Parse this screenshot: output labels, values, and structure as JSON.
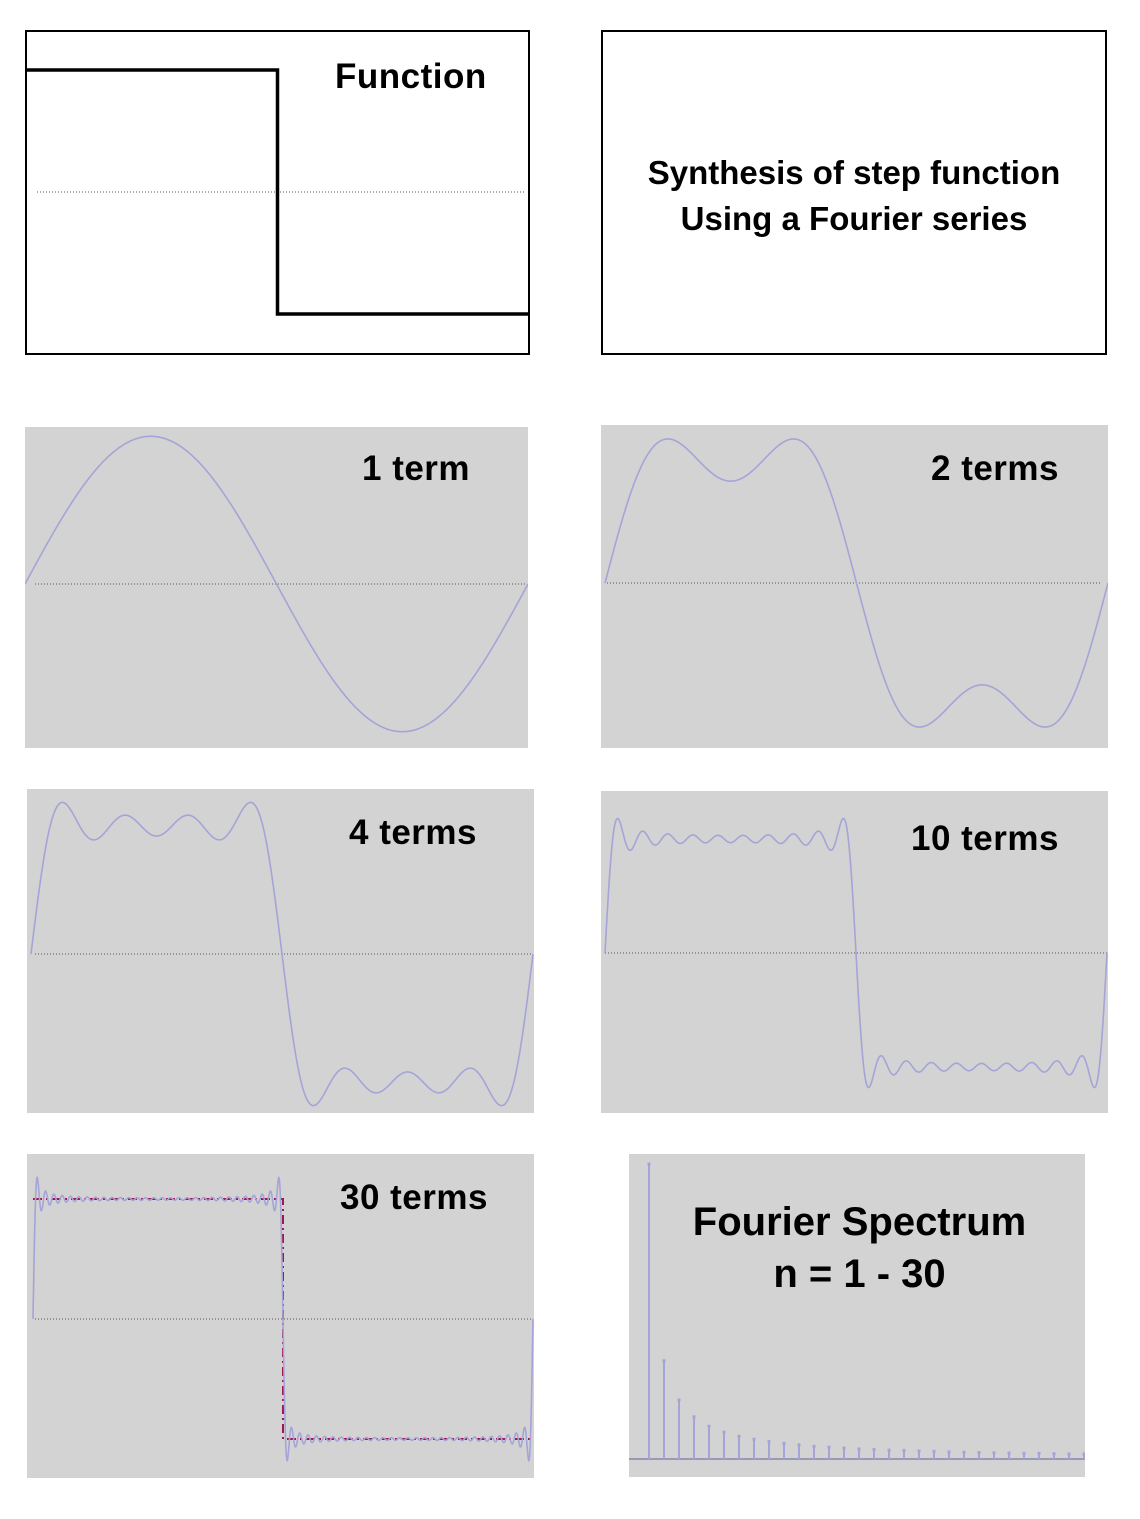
{
  "panels": {
    "function": {
      "label": "Function"
    },
    "caption": {
      "line1": "Synthesis of step function",
      "line2": "Using a Fourier series"
    },
    "t1": {
      "label": "1 term",
      "terms": 1
    },
    "t2": {
      "label": "2 terms",
      "terms": 2
    },
    "t4": {
      "label": "4 terms",
      "terms": 4
    },
    "t10": {
      "label": "10 terms",
      "terms": 10
    },
    "t30": {
      "label": "30 terms",
      "terms": 30
    },
    "spectrum": {
      "line1": "Fourier Spectrum",
      "line2": "n = 1 - 30"
    }
  },
  "chart_data": [
    {
      "type": "line",
      "title": "Function",
      "description_series": "step function",
      "series": [
        {
          "x": [
            0,
            0.5,
            0.5,
            1
          ],
          "values": [
            1,
            1,
            -1,
            -1
          ]
        }
      ],
      "ylim": [
        -1.3,
        1.3
      ]
    },
    {
      "type": "line",
      "title": "1 term",
      "terms": 1,
      "ylim": [
        -1.3,
        1.3
      ]
    },
    {
      "type": "line",
      "title": "2 terms",
      "terms": 2,
      "ylim": [
        -1.3,
        1.3
      ]
    },
    {
      "type": "line",
      "title": "4 terms",
      "terms": 4,
      "ylim": [
        -1.3,
        1.3
      ]
    },
    {
      "type": "line",
      "title": "10 terms",
      "terms": 10,
      "ylim": [
        -1.3,
        1.3
      ]
    },
    {
      "type": "line",
      "title": "30 terms",
      "terms": 30,
      "ylim": [
        -1.3,
        1.3
      ]
    },
    {
      "type": "bar",
      "title": "Fourier Spectrum n = 1 - 30",
      "categories": [
        1,
        2,
        3,
        4,
        5,
        6,
        7,
        8,
        9,
        10,
        11,
        12,
        13,
        14,
        15,
        16,
        17,
        18,
        19,
        20,
        21,
        22,
        23,
        24,
        25,
        26,
        27,
        28,
        29,
        30
      ],
      "values": [
        1,
        0.333,
        0.2,
        0.143,
        0.111,
        0.091,
        0.077,
        0.067,
        0.059,
        0.053,
        0.048,
        0.043,
        0.04,
        0.037,
        0.034,
        0.032,
        0.03,
        0.029,
        0.027,
        0.026,
        0.024,
        0.023,
        0.022,
        0.021,
        0.02,
        0.019,
        0.019,
        0.018,
        0.017,
        0.017
      ]
    }
  ],
  "colors": {
    "curve": "#a4a4d8",
    "step": "#000000",
    "dashed": "#a01650",
    "panel_grey": "#d3d3d3",
    "zero_line": "#555555"
  }
}
